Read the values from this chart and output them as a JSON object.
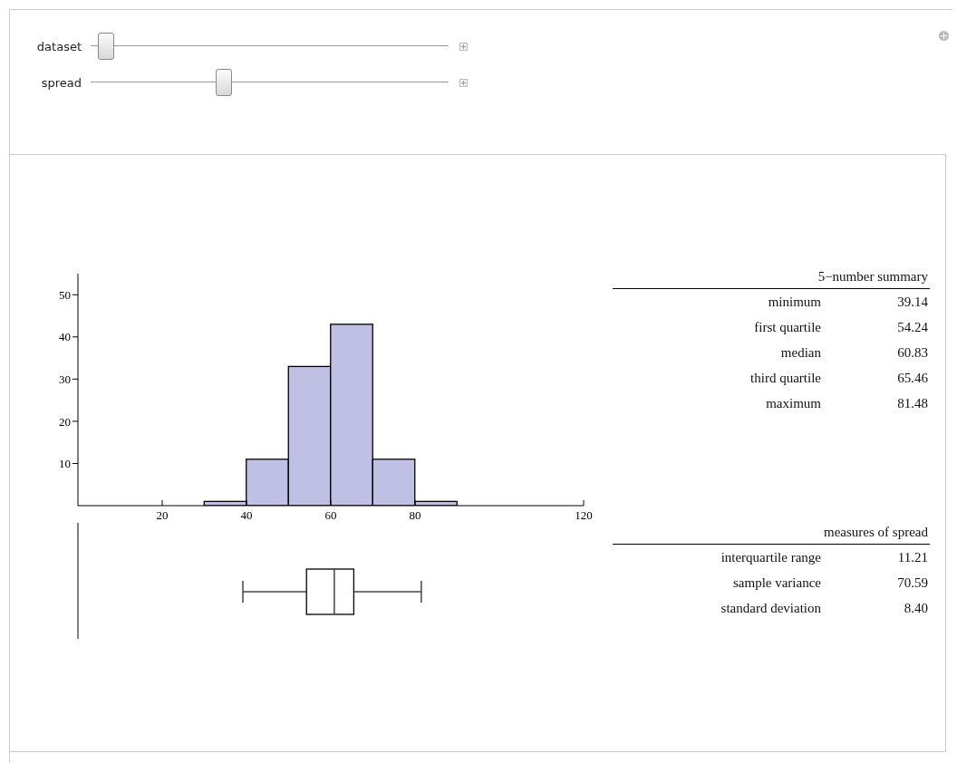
{
  "chart_data": [
    {
      "type": "other",
      "annotations": [
        "dataset",
        "spread"
      ]
    },
    {
      "type": "histogram",
      "bins": [
        30,
        40,
        50,
        60,
        70,
        80,
        90
      ],
      "values": [
        1,
        11,
        33,
        43,
        11,
        1
      ],
      "color": "#bfc0e3",
      "xlim": [
        0,
        120
      ],
      "xticks": [
        20,
        40,
        60,
        80,
        120
      ],
      "ylim": [
        0,
        55
      ],
      "yticks": [
        10,
        20,
        30,
        40,
        50
      ]
    },
    {
      "type": "box",
      "orientation": "horizontal",
      "categories": [
        null
      ],
      "boxes": [
        {
          "low": 39.14,
          "q1": 54.24,
          "median": 60.83,
          "q3": 65.46,
          "high": 81.48
        }
      ],
      "xlim": [
        0,
        120
      ],
      "tick_labels": false
    },
    {
      "type": "other",
      "title": "5−number summary",
      "categories": [
        "minimum",
        "first quartile",
        "median",
        "third quartile",
        "maximum"
      ],
      "values": [
        39.14,
        54.24,
        60.83,
        65.46,
        81.48
      ],
      "value_labels": [
        "39.14",
        "54.24",
        "60.83",
        "65.46",
        "81.48"
      ]
    },
    {
      "type": "other",
      "title": "measures of spread",
      "categories": [
        "interquartile range",
        "sample variance",
        "standard deviation"
      ],
      "values": [
        11.21,
        70.59,
        8.4
      ],
      "value_labels": [
        "11.21",
        "70.59",
        "8.40"
      ]
    }
  ]
}
